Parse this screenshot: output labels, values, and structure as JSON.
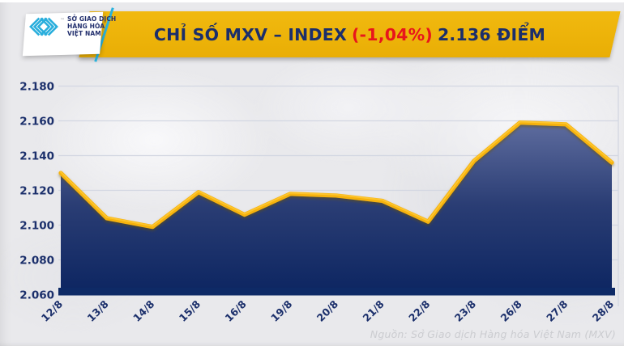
{
  "header": {
    "logo": {
      "icon": "mxv-chevron-logo-icon",
      "trademark": "™",
      "line1": "SỞ GIAO DỊCH",
      "line2": "HÀNG HÓA",
      "line3": "VIỆT NAM",
      "card_color": "#FFFFFF",
      "icon_color": "#29AEDC",
      "text_color": "#23306E"
    },
    "title": {
      "part1": "CHỈ SỐ MXV – INDEX",
      "change": "(-1,04%)",
      "part2": "2.136 ĐIỂM"
    },
    "banner_color": "#EDB40A",
    "title_color": "#1B2E6B",
    "change_color": "#E8151C"
  },
  "chart_data": {
    "type": "area",
    "title": "CHỈ SỐ MXV – INDEX (-1,04%) 2.136 ĐIỂM",
    "x": [
      "12/8",
      "13/8",
      "14/8",
      "15/8",
      "16/8",
      "19/8",
      "20/8",
      "21/8",
      "22/8",
      "23/8",
      "26/8",
      "27/8",
      "28/8"
    ],
    "values": [
      2130,
      2104,
      2099,
      2119,
      2106,
      2118,
      2117,
      2114,
      2102,
      2137,
      2159,
      2158,
      2136
    ],
    "ytick_labels": [
      "2.180",
      "2.160",
      "2.140",
      "2.120",
      "2.100",
      "2.080",
      "2.060"
    ],
    "ytick_values": [
      2180,
      2160,
      2140,
      2120,
      2100,
      2080,
      2060
    ],
    "ylim": [
      2060,
      2180
    ],
    "grid": true,
    "legend": "none",
    "line_color": "#F6B20C",
    "line_highlight_color": "#FFC832",
    "area_gradient_top": "#5E6C9E",
    "area_gradient_mid": "#2A3D74",
    "area_gradient_bottom": "#0C2561",
    "grid_color": "#D3D7E2",
    "axis_bar_color": "#0E2A66",
    "label_color": "#1B2F6B"
  },
  "footer": {
    "source": "Nguồn: Sở Giao dịch Hàng hóa Việt Nam (MXV)"
  }
}
